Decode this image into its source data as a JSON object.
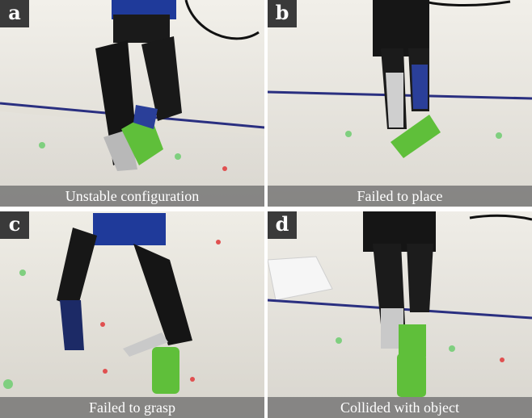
{
  "panels": [
    {
      "letter": "a",
      "caption": "Unstable configuration"
    },
    {
      "letter": "b",
      "caption": "Failed to place"
    },
    {
      "letter": "c",
      "caption": "Failed to grasp"
    },
    {
      "letter": "d",
      "caption": "Collided with object"
    }
  ],
  "colors": {
    "badge": "#3a3a3a",
    "caption_bar": "#6e6e6e",
    "object": "#5fbf3a",
    "line": "#2a2f80"
  }
}
